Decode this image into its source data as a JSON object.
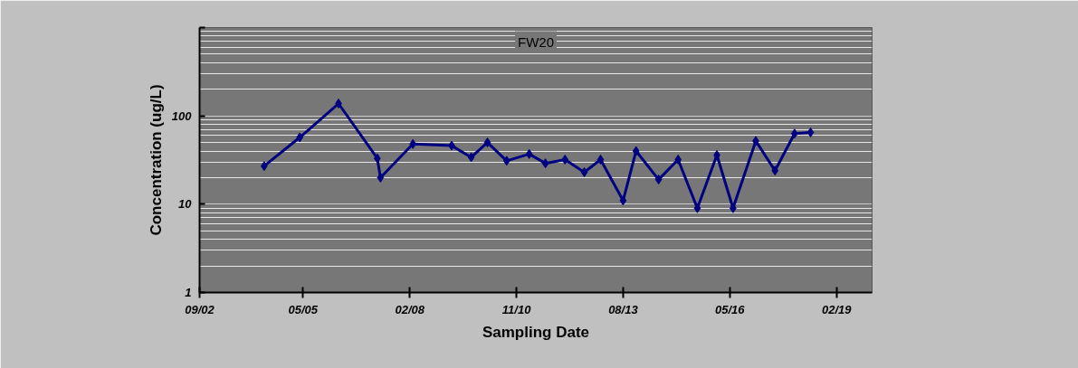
{
  "chart_data": {
    "type": "line",
    "title": "FW20",
    "xlabel": "Sampling Date",
    "ylabel": "Concentration (ug/L)",
    "x": [
      "2004-05",
      "2005-04",
      "2006-04",
      "2007-04",
      "2007-05",
      "2008-03",
      "2009-03",
      "2009-09",
      "2010-02",
      "2010-08",
      "2011-03",
      "2011-08",
      "2012-02",
      "2012-08",
      "2013-01",
      "2013-08",
      "2013-12",
      "2014-07",
      "2015-01",
      "2015-07",
      "2016-01",
      "2016-06",
      "2017-01",
      "2017-07",
      "2018-01",
      "2018-06"
    ],
    "series": [
      {
        "color": "#000080",
        "values": [
          27,
          57,
          138,
          33,
          20,
          48,
          46,
          34,
          50,
          31,
          37,
          29,
          32,
          23,
          32,
          11,
          40,
          19,
          32,
          9,
          36,
          9,
          52,
          24,
          63,
          65
        ]
      }
    ],
    "xlim": [
      "2002-09",
      "2020-01"
    ],
    "xticks": [
      {
        "value": "2002-09",
        "label": "09/02"
      },
      {
        "value": "2005-05",
        "label": "05/05"
      },
      {
        "value": "2008-02",
        "label": "02/08"
      },
      {
        "value": "2010-11",
        "label": "11/10"
      },
      {
        "value": "2013-08",
        "label": "08/13"
      },
      {
        "value": "2016-05",
        "label": "05/16"
      },
      {
        "value": "2019-02",
        "label": "02/19"
      }
    ],
    "ylim": [
      1,
      1000
    ],
    "yticks": [
      1,
      10,
      100,
      {
        "value": 1000,
        "label": null
      }
    ],
    "log": "y",
    "grid": "y",
    "marker": "diamond",
    "line_style": "solid"
  }
}
